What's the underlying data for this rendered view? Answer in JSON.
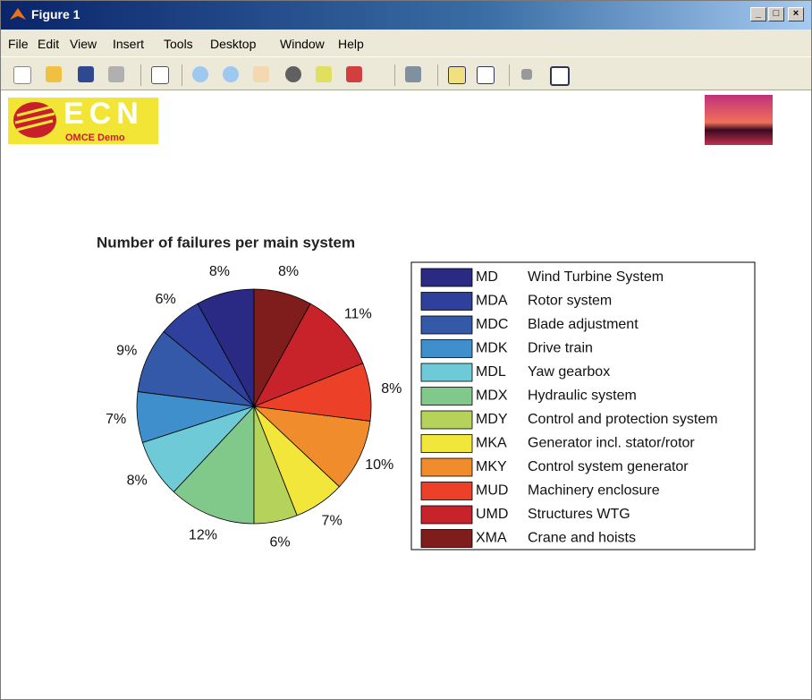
{
  "window_title": "Figure 1",
  "menu": [
    "File",
    "Edit",
    "View",
    "Insert",
    "Tools",
    "Desktop",
    "Window",
    "Help"
  ],
  "logo": {
    "text": "ECN",
    "subtext": "OMCE Demo"
  },
  "chart_data": {
    "type": "pie",
    "title": "Number of failures per main system",
    "categories": [
      "MD",
      "MDA",
      "MDC",
      "MDK",
      "MDL",
      "MDX",
      "MDY",
      "MKA",
      "MKY",
      "MUD",
      "UMD",
      "XMA"
    ],
    "descriptions": [
      "Wind Turbine System",
      "Rotor system",
      "Blade adjustment",
      "Drive train",
      "Yaw gearbox",
      "Hydraulic system",
      "Control and protection system",
      "Generator incl. stator/rotor",
      "Control system generator",
      "Machinery enclosure",
      "Structures WTG",
      "Crane and hoists"
    ],
    "values": [
      8,
      6,
      9,
      7,
      8,
      12,
      6,
      7,
      10,
      8,
      11,
      8
    ],
    "value_labels": [
      "8%",
      "6%",
      "9%",
      "7%",
      "8%",
      "12%",
      "6%",
      "7%",
      "10%",
      "8%",
      "11%",
      "8%"
    ],
    "colors": [
      "#2a2a85",
      "#2f409c",
      "#3459a8",
      "#3f8fcc",
      "#6dcad6",
      "#80c98a",
      "#b5d35a",
      "#f2e63a",
      "#f18c2d",
      "#ec4028",
      "#c8222a",
      "#7f1d1d"
    ],
    "legend": "right"
  }
}
